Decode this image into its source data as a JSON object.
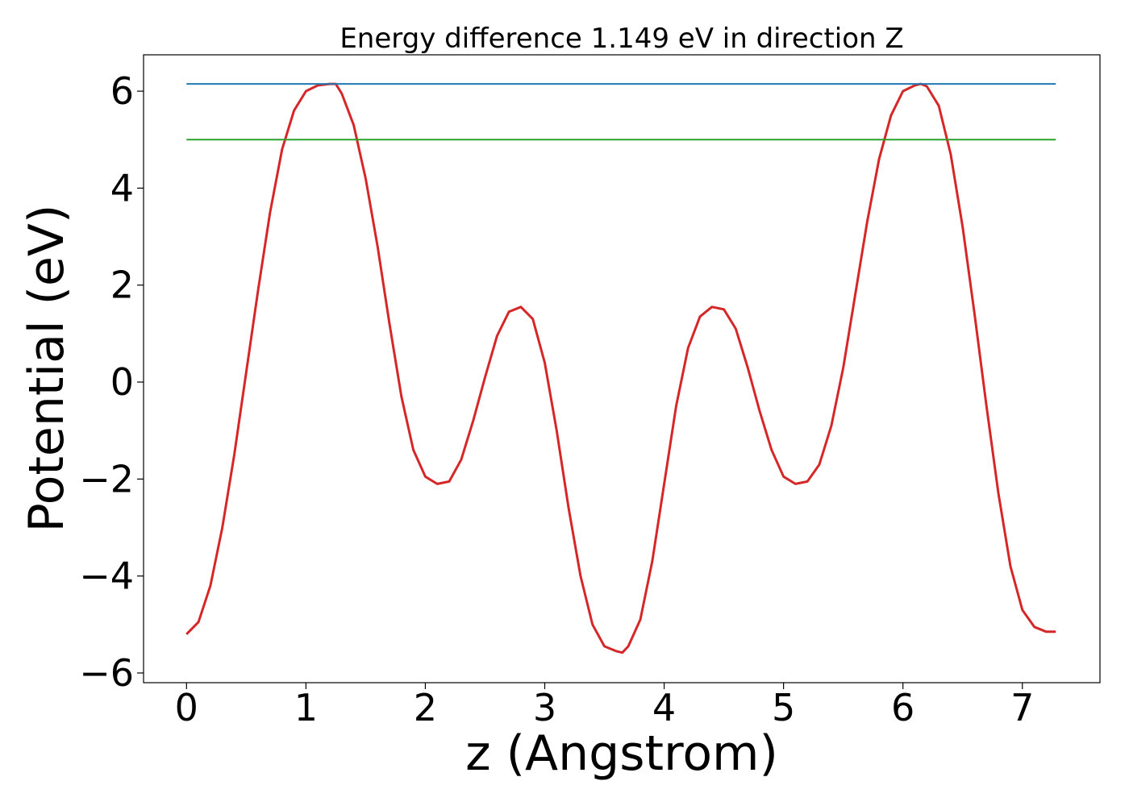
{
  "chart_data": {
    "type": "line",
    "title": "Energy difference 1.149 eV in direction Z",
    "xlabel": "z (Angstrom)",
    "ylabel": "Potential (eV)",
    "xlim": [
      -0.36,
      7.65
    ],
    "ylim": [
      -6.2,
      6.75
    ],
    "xticks": [
      0,
      1,
      2,
      3,
      4,
      5,
      6,
      7
    ],
    "xtick_labels": [
      "0",
      "1",
      "2",
      "3",
      "4",
      "5",
      "6",
      "7"
    ],
    "yticks": [
      -6,
      -4,
      -2,
      0,
      2,
      4,
      6
    ],
    "ytick_labels": [
      "−6",
      "−4",
      "−2",
      "0",
      "2",
      "4",
      "6"
    ],
    "grid": false,
    "series": [
      {
        "color": "#d62728",
        "x": [
          0.0,
          0.1,
          0.2,
          0.3,
          0.4,
          0.5,
          0.6,
          0.7,
          0.8,
          0.9,
          1.0,
          1.1,
          1.2,
          1.25,
          1.3,
          1.4,
          1.5,
          1.6,
          1.7,
          1.8,
          1.9,
          2.0,
          2.1,
          2.2,
          2.3,
          2.4,
          2.5,
          2.6,
          2.7,
          2.8,
          2.9,
          3.0,
          3.1,
          3.2,
          3.3,
          3.4,
          3.5,
          3.6,
          3.65,
          3.7,
          3.8,
          3.9,
          4.0,
          4.1,
          4.2,
          4.3,
          4.4,
          4.5,
          4.6,
          4.7,
          4.8,
          4.9,
          5.0,
          5.1,
          5.2,
          5.3,
          5.4,
          5.5,
          5.6,
          5.7,
          5.8,
          5.9,
          6.0,
          6.1,
          6.15,
          6.2,
          6.3,
          6.4,
          6.5,
          6.6,
          6.7,
          6.8,
          6.9,
          7.0,
          7.1,
          7.2,
          7.28
        ],
        "y": [
          -5.2,
          -4.95,
          -4.2,
          -3.0,
          -1.5,
          0.2,
          1.9,
          3.5,
          4.8,
          5.6,
          6.0,
          6.12,
          6.15,
          6.15,
          5.95,
          5.3,
          4.2,
          2.8,
          1.2,
          -0.3,
          -1.4,
          -1.95,
          -2.1,
          -2.05,
          -1.6,
          -0.8,
          0.1,
          0.95,
          1.45,
          1.55,
          1.3,
          0.4,
          -1.0,
          -2.6,
          -4.0,
          -5.0,
          -5.45,
          -5.55,
          -5.58,
          -5.45,
          -4.9,
          -3.7,
          -2.1,
          -0.5,
          0.7,
          1.35,
          1.55,
          1.5,
          1.1,
          0.3,
          -0.6,
          -1.4,
          -1.95,
          -2.1,
          -2.05,
          -1.7,
          -0.9,
          0.3,
          1.8,
          3.3,
          4.6,
          5.5,
          6.0,
          6.12,
          6.15,
          6.1,
          5.7,
          4.7,
          3.2,
          1.4,
          -0.5,
          -2.3,
          -3.8,
          -4.7,
          -5.05,
          -5.15,
          -5.15
        ]
      },
      {
        "color": "#1f77b4",
        "x": [
          0.0,
          7.28
        ],
        "y": [
          6.15,
          6.15
        ]
      },
      {
        "color": "#2ca02c",
        "x": [
          0.0,
          7.28
        ],
        "y": [
          5.0,
          5.0
        ]
      }
    ]
  }
}
